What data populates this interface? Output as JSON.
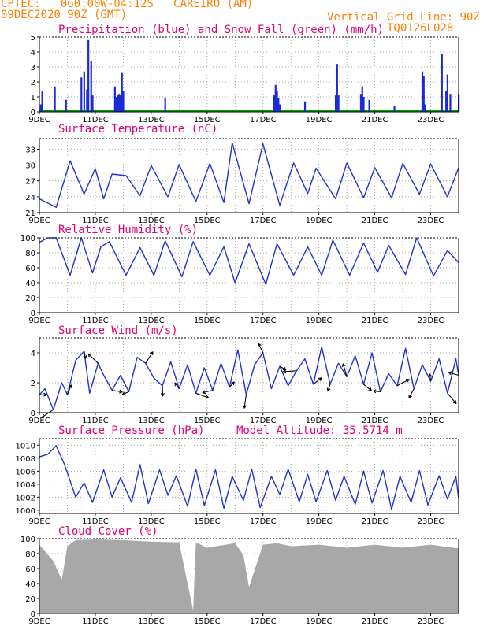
{
  "header": {
    "line1": "CPTEC:   060:00W-04:12S   CAREIRO (AM)",
    "line2": "09DEC2020 90Z (GMT)",
    "grid_note": "Vertical Grid Line: 90Z",
    "code": "TQ0126L028"
  },
  "colors": {
    "header": "#ff8000",
    "title": "#e0007a",
    "line": "#2233cc",
    "bars": "#1a2bd6",
    "snow": "#00a000",
    "cloud": "#a8a8a8",
    "arrow": "#000000"
  },
  "chart_data": [
    {
      "type": "bar",
      "title": "Precipitation (blue) and Snow Fall (green) (mm/h)",
      "xticks": [
        "9DEC",
        "11DEC",
        "13DEC",
        "15DEC",
        "17DEC",
        "19DEC",
        "21DEC",
        "23DEC"
      ],
      "xrange_days": [
        9,
        24
      ],
      "ylim": [
        0,
        5
      ],
      "yticks": [
        0,
        1,
        2,
        3,
        4,
        5
      ],
      "x_day": [
        9.05,
        9.1,
        9.55,
        9.95,
        10.5,
        10.6,
        10.7,
        10.75,
        10.85,
        10.9,
        11.7,
        11.75,
        11.8,
        11.85,
        11.9,
        11.95,
        12.0,
        13.5,
        17.4,
        17.45,
        17.5,
        17.55,
        17.6,
        18.5,
        19.6,
        19.65,
        19.7,
        20.5,
        20.55,
        20.6,
        20.8,
        21.7,
        22.7,
        22.75,
        22.8,
        23.4,
        23.55,
        23.6,
        23.7,
        24.0
      ],
      "values": [
        0.5,
        1.4,
        1.7,
        0.8,
        2.3,
        2.7,
        1.5,
        4.8,
        3.4,
        1.1,
        1.7,
        1.0,
        1.1,
        1.2,
        1.1,
        2.6,
        1.4,
        0.9,
        1.1,
        1.8,
        1.4,
        0.9,
        0.5,
        0.7,
        1.1,
        3.2,
        1.1,
        1.2,
        1.7,
        1.0,
        0.8,
        0.4,
        2.7,
        2.4,
        0.5,
        3.9,
        1.4,
        2.5,
        1.2,
        1.2
      ],
      "snow_values": "0 throughout"
    },
    {
      "type": "line",
      "title": "Surface Temperature (nC)",
      "xticks": [
        "9DEC",
        "11DEC",
        "13DEC",
        "15DEC",
        "17DEC",
        "19DEC",
        "21DEC",
        "23DEC"
      ],
      "ylim": [
        21,
        35
      ],
      "yticks": [
        21,
        24,
        27,
        30,
        33
      ],
      "x_day": [
        9.0,
        9.6,
        10.1,
        10.6,
        11.0,
        11.3,
        11.6,
        12.1,
        12.6,
        13.0,
        13.6,
        14.0,
        14.6,
        15.1,
        15.6,
        15.9,
        16.5,
        17.0,
        17.6,
        18.1,
        18.6,
        18.9,
        19.6,
        20.0,
        20.6,
        21.0,
        21.6,
        22.0,
        22.6,
        23.0,
        23.6,
        24.0
      ],
      "values": [
        23.6,
        22.0,
        30.8,
        24.5,
        29.3,
        23.6,
        28.3,
        28.0,
        24.2,
        29.9,
        24.0,
        30.1,
        23.1,
        30.3,
        22.9,
        34.2,
        22.7,
        34.0,
        22.4,
        30.4,
        24.6,
        29.4,
        23.6,
        30.4,
        23.8,
        29.5,
        23.8,
        30.3,
        24.5,
        30.2,
        24.0,
        29.5
      ]
    },
    {
      "type": "line",
      "title": "Relative Humidity (%)",
      "xticks": [
        "9DEC",
        "11DEC",
        "13DEC",
        "15DEC",
        "17DEC",
        "19DEC",
        "21DEC",
        "23DEC"
      ],
      "ylim": [
        0,
        100
      ],
      "yticks": [
        0,
        20,
        40,
        60,
        80,
        100
      ],
      "x_day": [
        9.0,
        9.3,
        9.6,
        10.1,
        10.5,
        10.9,
        11.2,
        11.5,
        12.1,
        12.6,
        13.1,
        13.5,
        14.1,
        14.5,
        15.1,
        15.6,
        16.0,
        16.5,
        17.1,
        17.5,
        18.1,
        18.6,
        19.1,
        19.5,
        20.1,
        20.6,
        21.1,
        21.5,
        22.1,
        22.5,
        23.1,
        23.6,
        24.0
      ],
      "values": [
        94,
        100,
        100,
        50,
        100,
        53,
        88,
        95,
        50,
        87,
        50,
        96,
        48,
        95,
        50,
        88,
        40,
        92,
        38,
        92,
        50,
        88,
        50,
        97,
        50,
        93,
        54,
        90,
        51,
        100,
        49,
        83,
        67
      ]
    },
    {
      "type": "line",
      "title": "Surface Wind (m/s)",
      "xticks": [
        "9DEC",
        "11DEC",
        "13DEC",
        "15DEC",
        "17DEC",
        "19DEC",
        "21DEC",
        "23DEC"
      ],
      "ylim": [
        0,
        5
      ],
      "yticks": [
        0,
        2,
        4
      ],
      "x_day": [
        9.0,
        9.2,
        9.5,
        9.8,
        10.0,
        10.3,
        10.6,
        10.8,
        11.1,
        11.3,
        11.6,
        11.9,
        12.2,
        12.5,
        12.8,
        13.1,
        13.4,
        13.7,
        14.0,
        14.3,
        14.6,
        14.9,
        15.2,
        15.5,
        15.8,
        16.1,
        16.4,
        16.7,
        17.0,
        17.3,
        17.6,
        17.9,
        18.2,
        18.5,
        18.8,
        19.1,
        19.4,
        19.7,
        20.0,
        20.3,
        20.6,
        20.9,
        21.2,
        21.5,
        21.8,
        22.1,
        22.4,
        22.7,
        23.0,
        23.3,
        23.6,
        23.9,
        24.0
      ],
      "values": [
        1.2,
        1.6,
        0.2,
        2.0,
        1.2,
        3.5,
        4.1,
        1.3,
        3.3,
        2.5,
        1.5,
        2.5,
        1.4,
        3.7,
        3.3,
        2.3,
        1.8,
        3.4,
        1.6,
        3.2,
        1.3,
        3.0,
        1.5,
        3.3,
        1.7,
        4.2,
        1.2,
        3.2,
        4.0,
        1.6,
        3.1,
        1.8,
        2.8,
        3.6,
        1.9,
        4.4,
        1.9,
        3.3,
        2.4,
        3.8,
        1.9,
        4.0,
        1.4,
        2.6,
        1.8,
        4.3,
        1.6,
        3.2,
        2.1,
        3.6,
        1.3,
        3.6,
        2.5
      ]
    },
    {
      "type": "line",
      "title": "Surface Pressure (hPa)",
      "annotation": "Model Altitude: 35.5714 m",
      "xticks": [
        "9DEC",
        "11DEC",
        "13DEC",
        "15DEC",
        "17DEC",
        "19DEC",
        "21DEC",
        "23DEC"
      ],
      "ylim": [
        999.5,
        1011
      ],
      "yticks": [
        1000,
        1002,
        1004,
        1006,
        1008,
        1010
      ],
      "x_day": [
        9.0,
        9.3,
        9.6,
        9.9,
        10.3,
        10.6,
        10.9,
        11.3,
        11.6,
        11.9,
        12.3,
        12.6,
        12.9,
        13.3,
        13.6,
        13.9,
        14.3,
        14.6,
        14.9,
        15.3,
        15.6,
        15.9,
        16.3,
        16.6,
        16.9,
        17.3,
        17.6,
        17.9,
        18.3,
        18.6,
        18.9,
        19.3,
        19.6,
        19.9,
        20.3,
        20.6,
        20.9,
        21.3,
        21.6,
        21.9,
        22.3,
        22.6,
        22.9,
        23.3,
        23.6,
        23.9,
        24.0
      ],
      "values": [
        1008.2,
        1008.6,
        1009.9,
        1007.0,
        1002.0,
        1004.2,
        1001.2,
        1006.2,
        1002.0,
        1005.0,
        1001.2,
        1007.0,
        1001.0,
        1006.2,
        1002.3,
        1005.3,
        1000.6,
        1006.3,
        1000.7,
        1006.2,
        1000.3,
        1005.2,
        1001.5,
        1006.3,
        1000.4,
        1005.2,
        1002.4,
        1006.3,
        1001.3,
        1005.5,
        1001.3,
        1006.1,
        1001.5,
        1005.2,
        1000.9,
        1006.0,
        1001.1,
        1006.1,
        1000.1,
        1005.2,
        1001.2,
        1006.1,
        1000.8,
        1005.3,
        1001.7,
        1005.2,
        1001.8
      ]
    },
    {
      "type": "area",
      "title": "Cloud Cover (%)",
      "xticks": [
        "9DEC",
        "11DEC",
        "13DEC",
        "15DEC",
        "17DEC",
        "19DEC",
        "21DEC",
        "23DEC"
      ],
      "ylim": [
        0,
        100
      ],
      "yticks": [
        0,
        20,
        40,
        60,
        80,
        100
      ],
      "x_day": [
        9.0,
        9.5,
        9.8,
        10.0,
        10.3,
        11.0,
        12.0,
        13.0,
        14.0,
        14.5,
        14.6,
        15.0,
        16.0,
        16.3,
        16.5,
        17.0,
        17.5,
        18.0,
        19.0,
        20.0,
        21.0,
        22.0,
        23.0,
        24.0
      ],
      "values": [
        92,
        70,
        45,
        90,
        98,
        99,
        98,
        96,
        95,
        4,
        95,
        88,
        94,
        78,
        35,
        92,
        94,
        90,
        92,
        88,
        92,
        88,
        92,
        87
      ]
    }
  ]
}
